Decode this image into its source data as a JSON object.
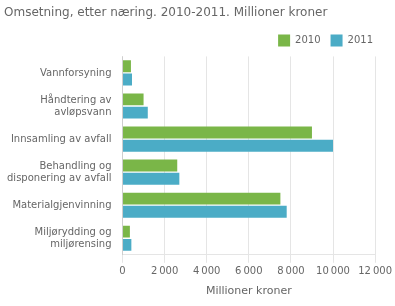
{
  "chart_data": {
    "type": "bar",
    "orientation": "horizontal",
    "title": "Omsetning, etter næring. 2010-2011. Millioner kroner",
    "categories": [
      "Vannforsyning",
      "Håndtering av\navløpsvann",
      "Innsamling av avfall",
      "Behandling og\ndisponering av avfall",
      "Materialgjenvinning",
      "Miljørydding og\nmiljørensing"
    ],
    "series": [
      {
        "name": "2010",
        "color": "#7ab648",
        "values": [
          400,
          1000,
          9000,
          2600,
          7500,
          350
        ]
      },
      {
        "name": "2011",
        "color": "#4bacc6",
        "values": [
          450,
          1200,
          10000,
          2700,
          7800,
          420
        ]
      }
    ],
    "xlabel": "Millioner kroner",
    "xlim": [
      0,
      12000
    ],
    "xticks": [
      0,
      {
        "value": 2000,
        "label": "2 000"
      },
      {
        "value": 4000,
        "label": "4 000"
      },
      {
        "value": 6000,
        "label": "6 000"
      },
      {
        "value": 8000,
        "label": "8 000"
      },
      {
        "value": 10000,
        "label": "10 000"
      },
      {
        "value": 12000,
        "label": "12 000"
      }
    ],
    "grid": true,
    "legend": "upper right"
  }
}
